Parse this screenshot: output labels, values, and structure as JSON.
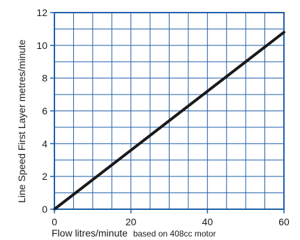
{
  "chart_data": {
    "type": "line",
    "title": "",
    "xlabel": "Flow litres/minute",
    "xlabel_note": "based on 408cc motor",
    "ylabel": "Line Speed  First Layer  metres/minute",
    "xlim": [
      0,
      60
    ],
    "ylim": [
      0,
      12
    ],
    "x_ticks": [
      0,
      20,
      40,
      60
    ],
    "y_ticks": [
      0,
      2,
      4,
      6,
      8,
      10,
      12
    ],
    "x_tick_labels": [
      "0",
      "20",
      "40",
      "60"
    ],
    "y_tick_labels": [
      "0",
      "2",
      "4",
      "6",
      "8",
      "10",
      "12"
    ],
    "x_grid_step": 5,
    "y_grid_step": 1,
    "grid": true,
    "series": [
      {
        "x": [
          0,
          60
        ],
        "y": [
          0,
          10.8
        ]
      }
    ],
    "colors": {
      "grid": "#1f5fa8",
      "line": "#1a1a1a",
      "text": "#1a1a1a"
    }
  }
}
